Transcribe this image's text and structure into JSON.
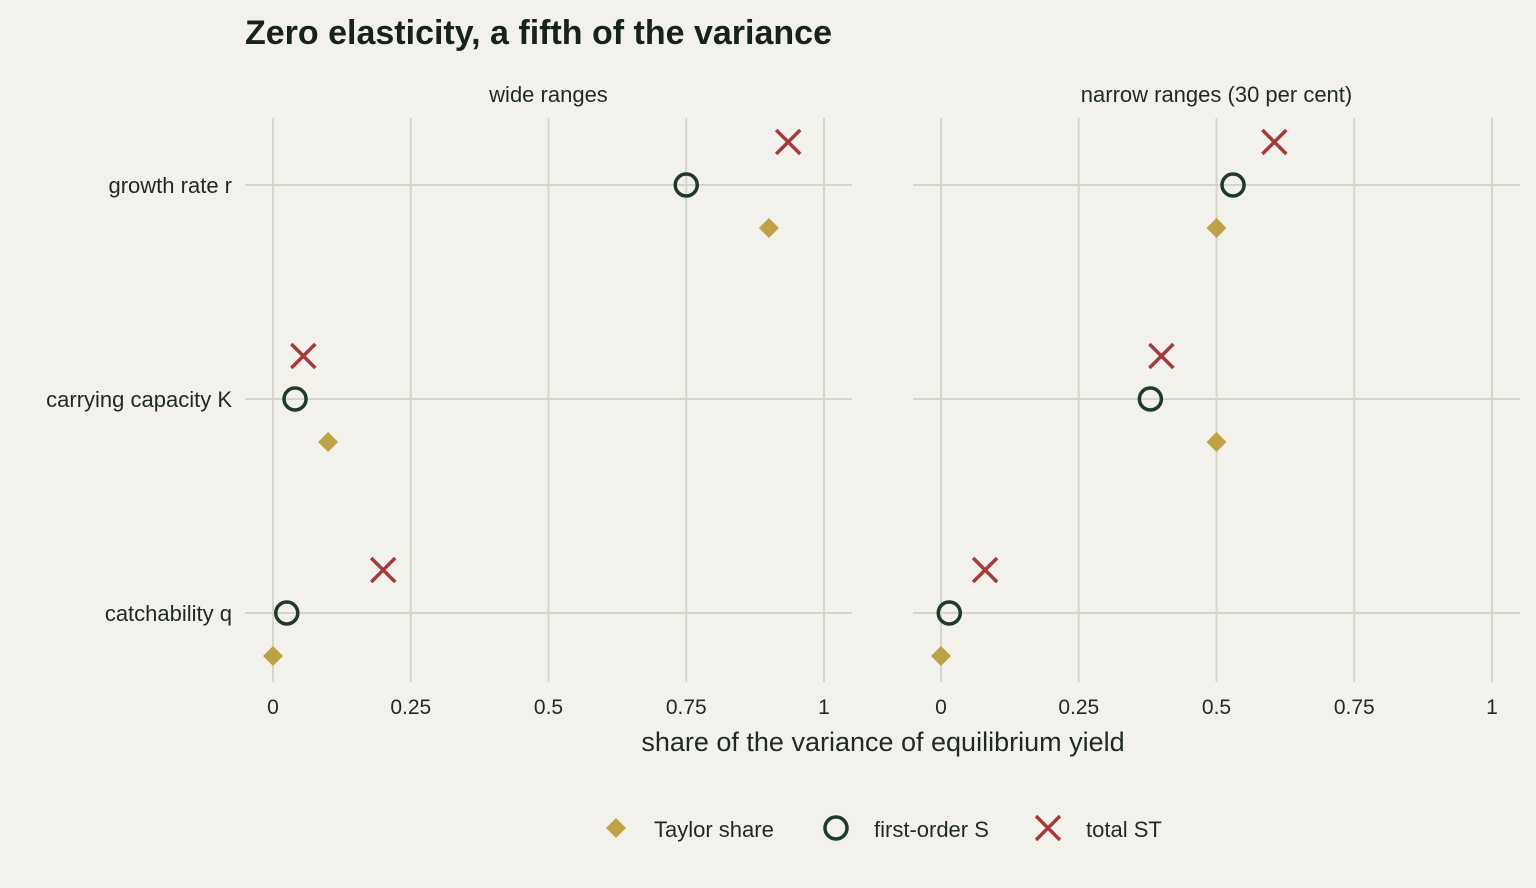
{
  "chart_data": {
    "type": "scatter",
    "title": "Zero elasticity, a fifth of the variance",
    "xlabel": "share of the variance of equilibrium yield",
    "categories": [
      "growth rate r",
      "carrying capacity K",
      "catchability q"
    ],
    "xlim": [
      0,
      1
    ],
    "xticks": [
      0,
      0.25,
      0.5,
      0.75,
      1
    ],
    "xtick_labels": [
      "0",
      "0.25",
      "0.5",
      "0.75",
      "1"
    ],
    "grid": true,
    "legend_position": "bottom",
    "series_styles": [
      {
        "key": "taylor",
        "name": "Taylor share",
        "shape": "diamond",
        "color": "#bfa245"
      },
      {
        "key": "first",
        "name": "first-order S",
        "shape": "circle",
        "color": "#1f3a2a"
      },
      {
        "key": "total",
        "name": "total ST",
        "shape": "cross",
        "color": "#a33b3b"
      }
    ],
    "panels": [
      {
        "title": "wide ranges",
        "series": {
          "taylor": [
            0.9,
            0.1,
            0.0
          ],
          "first": [
            0.75,
            0.04,
            0.025
          ],
          "total": [
            0.935,
            0.055,
            0.2
          ]
        }
      },
      {
        "title": "narrow ranges (30 per cent)",
        "series": {
          "taylor": [
            0.5,
            0.5,
            0.0
          ],
          "first": [
            0.53,
            0.38,
            0.015
          ],
          "total": [
            0.605,
            0.4,
            0.08
          ]
        }
      }
    ]
  }
}
